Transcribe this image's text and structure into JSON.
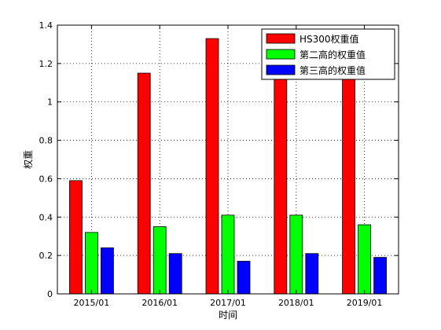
{
  "chart_data": {
    "type": "bar",
    "title": "",
    "xlabel": "时间",
    "ylabel": "权重",
    "categories": [
      "2015/01",
      "2016/01",
      "2017/01",
      "2018/01",
      "2019/01"
    ],
    "ylim": [
      0,
      1.4
    ],
    "yticks": [
      "0",
      "0.2",
      "0.4",
      "0.6",
      "0.8",
      "1",
      "1.2",
      "1.4"
    ],
    "grid": true,
    "legend_position": "top-right",
    "series": [
      {
        "name": "HS300权重值",
        "color": "#ff0000",
        "values": [
          0.59,
          1.15,
          1.33,
          1.32,
          1.31
        ]
      },
      {
        "name": "第二高的权重值",
        "color": "#00ff00",
        "values": [
          0.32,
          0.35,
          0.41,
          0.41,
          0.36
        ]
      },
      {
        "name": "第三高的权重值",
        "color": "#0000ff",
        "values": [
          0.24,
          0.21,
          0.17,
          0.21,
          0.19
        ]
      }
    ]
  }
}
